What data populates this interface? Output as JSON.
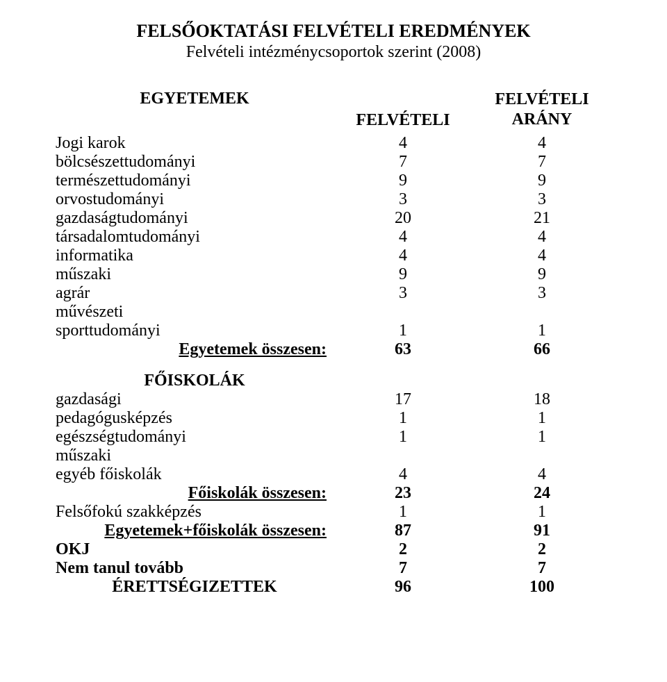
{
  "doc": {
    "title": "FELSŐOKTATÁSI FELVÉTELI EREDMÉNYEK",
    "subtitle": "Felvételi intézménycsoportok szerint (2008)",
    "background_color": "#ffffff",
    "text_color": "#000000",
    "font_family": "Times New Roman"
  },
  "headers": {
    "section1": "EGYETEMEK",
    "col1": "FELVÉTELI",
    "col2_line1": "FELVÉTELI",
    "col2_line2": "ARÁNY"
  },
  "universities": {
    "rows": [
      {
        "label": "Jogi karok",
        "v1": "4",
        "v2": "4"
      },
      {
        "label": "bölcsészettudományi",
        "v1": "7",
        "v2": "7"
      },
      {
        "label": "természettudományi",
        "v1": "9",
        "v2": "9"
      },
      {
        "label": "orvostudományi",
        "v1": "3",
        "v2": "3"
      },
      {
        "label": "gazdaságtudományi",
        "v1": "20",
        "v2": "21"
      },
      {
        "label": "társadalomtudományi",
        "v1": "4",
        "v2": "4"
      },
      {
        "label": "informatika",
        "v1": "4",
        "v2": "4"
      },
      {
        "label": "műszaki",
        "v1": "9",
        "v2": "9"
      },
      {
        "label": "agrár",
        "v1": "3",
        "v2": "3"
      },
      {
        "label": "művészeti",
        "v1": "",
        "v2": ""
      },
      {
        "label": "sporttudományi",
        "v1": "1",
        "v2": "1"
      }
    ],
    "total_label": "Egyetemek összesen:",
    "total_v1": "63",
    "total_v2": "66"
  },
  "colleges": {
    "section": "FŐISKOLÁK",
    "rows": [
      {
        "label": "gazdasági",
        "v1": "17",
        "v2": "18"
      },
      {
        "label": "pedagógusképzés",
        "v1": "1",
        "v2": "1"
      },
      {
        "label": "egészségtudományi",
        "v1": "1",
        "v2": "1"
      },
      {
        "label": "műszaki",
        "v1": "",
        "v2": ""
      },
      {
        "label": "egyéb főiskolák",
        "v1": "4",
        "v2": "4"
      }
    ],
    "total_label": "Főiskolák összesen:",
    "total_v1": "23",
    "total_v2": "24"
  },
  "after": {
    "rows": [
      {
        "label": "Felsőfokú szakképzés",
        "v1": "1",
        "v2": "1",
        "bold": false
      }
    ],
    "grand_total_label": "Egyetemek+főiskolák összesen:",
    "grand_total_v1": "87",
    "grand_total_v2": "91",
    "okj_label": "OKJ",
    "okj_v1": "2",
    "okj_v2": "2",
    "nemtanul_label": "Nem tanul tovább",
    "nemtanul_v1": "7",
    "nemtanul_v2": "7",
    "erettsegi_label": "ÉRETTSÉGIZETTEK",
    "erettsegi_v1": "96",
    "erettsegi_v2": "100"
  }
}
